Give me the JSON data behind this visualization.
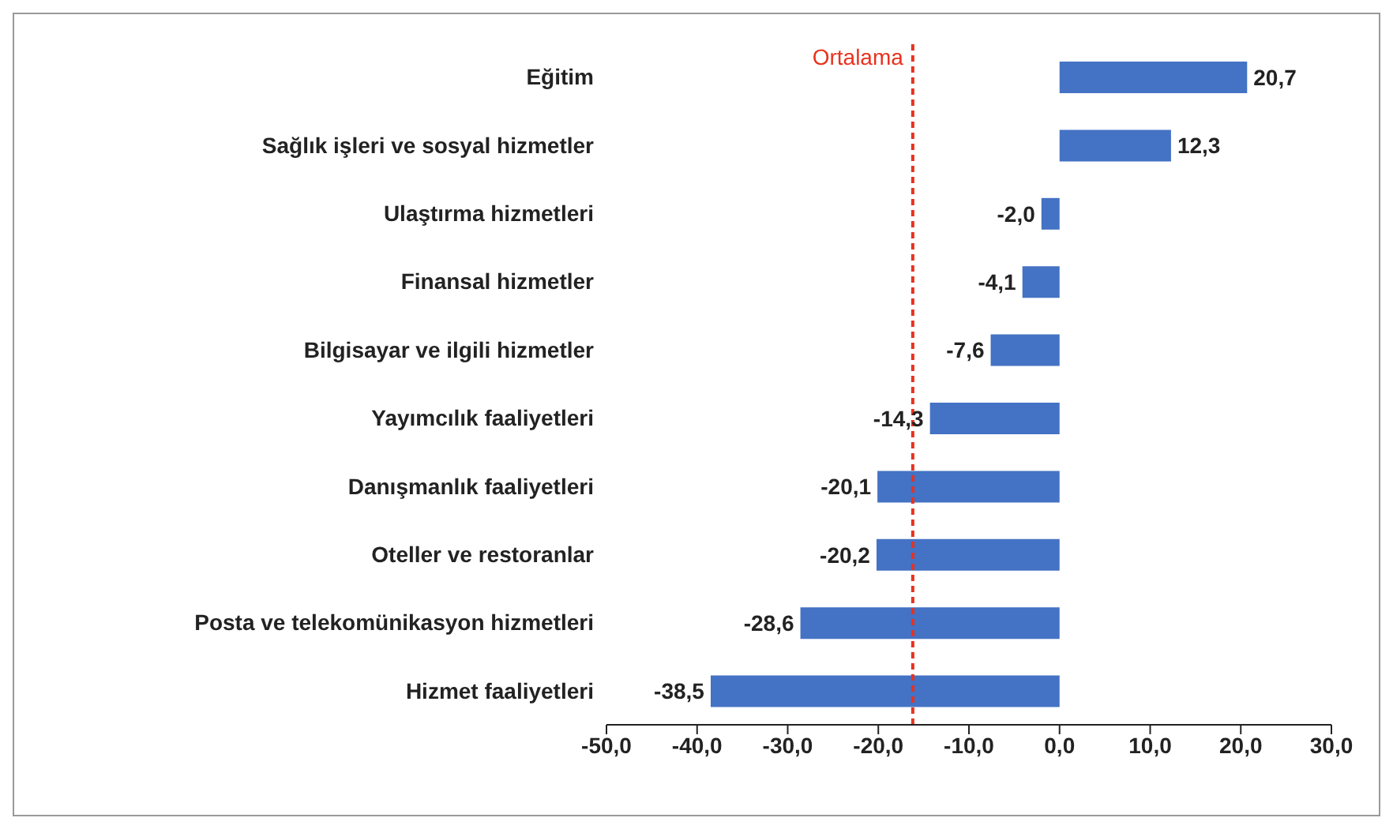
{
  "chart_data": {
    "type": "bar",
    "orientation": "horizontal",
    "categories": [
      "Eğitim",
      "Sağlık işleri ve sosyal hizmetler",
      "Ulaştırma hizmetleri",
      "Finansal hizmetler",
      "Bilgisayar ve ilgili hizmetler",
      "Yayımcılık faaliyetleri",
      "Danışmanlık faaliyetleri",
      "Oteller ve restoranlar",
      "Posta ve telekomünikasyon hizmetleri",
      "Hizmet faaliyetleri"
    ],
    "values": [
      20.7,
      12.3,
      -2.0,
      -4.1,
      -7.6,
      -14.3,
      -20.1,
      -20.2,
      -28.6,
      -38.5
    ],
    "value_labels": [
      "20,7",
      "12,3",
      "-2,0",
      "-4,1",
      "-7,6",
      "-14,3",
      "-20,1",
      "-20,2",
      "-28,6",
      "-38,5"
    ],
    "color": "#4472c4",
    "xlim": [
      -50,
      30
    ],
    "xticks": [
      {
        "value": -50,
        "label": "-50,0"
      },
      {
        "value": -40,
        "label": "-40,0"
      },
      {
        "value": -30,
        "label": "-30,0"
      },
      {
        "value": -20,
        "label": "-20,0"
      },
      {
        "value": -10,
        "label": "-10,0"
      },
      {
        "value": 0,
        "label": "0,0"
      },
      {
        "value": 10,
        "label": "10,0"
      },
      {
        "value": 20,
        "label": "20,0"
      },
      {
        "value": 30,
        "label": "30,0"
      }
    ],
    "ref_lines": [
      {
        "axis": "x",
        "value": -16.2,
        "label": "Ortalama",
        "color": "#e8321e",
        "line_style": "dashed"
      }
    ],
    "grid": false,
    "legend": false
  }
}
